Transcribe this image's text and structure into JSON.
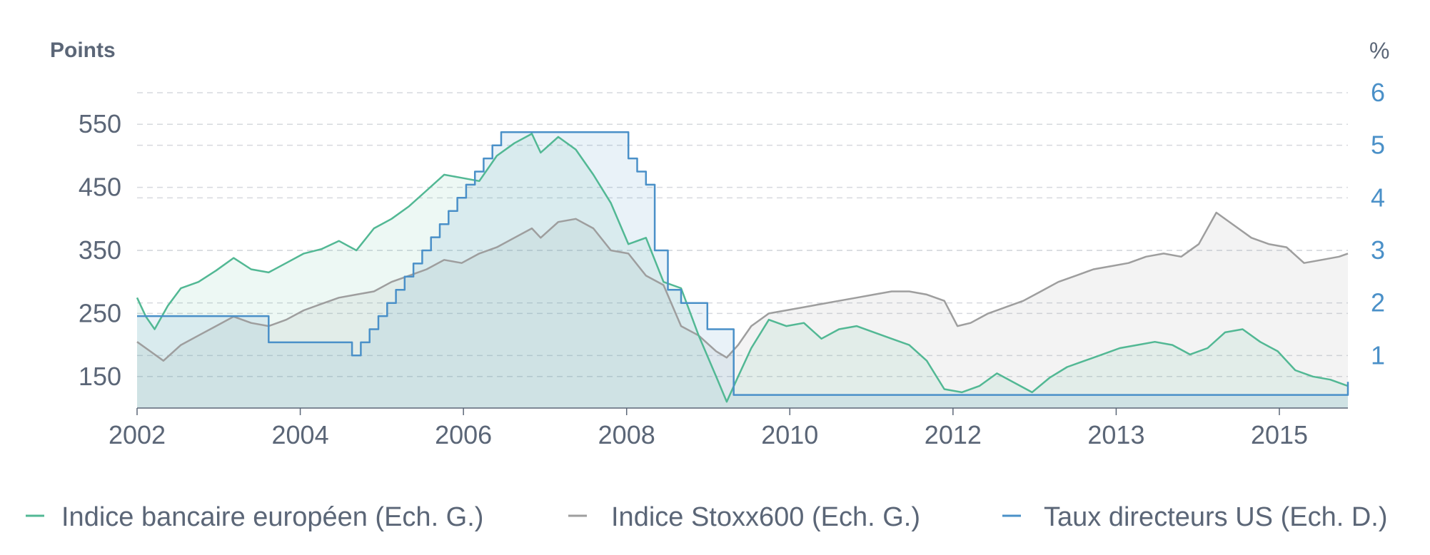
{
  "chart_data": {
    "type": "line",
    "left_axis_label": "Points",
    "right_axis_label": "%",
    "y_left_range": [
      100,
      600
    ],
    "y_right_range": [
      0,
      6
    ],
    "y_left_ticks": [
      "150",
      "250",
      "350",
      "450",
      "550"
    ],
    "y_right_ticks": [
      "1",
      "2",
      "3",
      "4",
      "5",
      "6"
    ],
    "x_tick_labels": [
      "2002",
      "2004",
      "2006",
      "2008",
      "2010",
      "2012",
      "2013",
      "2015"
    ],
    "x_range": [
      2002.0,
      2015.8
    ],
    "grid": "horizontal-dashed",
    "legend_position": "bottom",
    "colors": {
      "bank_index": "#52b894",
      "stoxx600": "#9e9e9e",
      "us_rates": "#4a90c8",
      "text": "#5b6677"
    },
    "series": [
      {
        "name": "Indice bancaire européen (Ech. G.)",
        "axis": "left",
        "x": [
          2002.0,
          2002.1,
          2002.2,
          2002.35,
          2002.5,
          2002.7,
          2002.9,
          2003.1,
          2003.3,
          2003.5,
          2003.7,
          2003.9,
          2004.1,
          2004.3,
          2004.5,
          2004.7,
          2004.9,
          2005.1,
          2005.3,
          2005.5,
          2005.7,
          2005.9,
          2006.1,
          2006.3,
          2006.5,
          2006.6,
          2006.8,
          2007.0,
          2007.2,
          2007.4,
          2007.6,
          2007.8,
          2008.0,
          2008.2,
          2008.4,
          2008.6,
          2008.72,
          2008.85,
          2009.0,
          2009.2,
          2009.4,
          2009.6,
          2009.8,
          2010.0,
          2010.2,
          2010.4,
          2010.6,
          2010.8,
          2011.0,
          2011.2,
          2011.4,
          2011.6,
          2011.8,
          2012.0,
          2012.2,
          2012.4,
          2012.6,
          2012.8,
          2013.0,
          2013.2,
          2013.4,
          2013.6,
          2013.8,
          2014.0,
          2014.2,
          2014.4,
          2014.6,
          2014.8,
          2015.0,
          2015.2,
          2015.4,
          2015.6,
          2015.8
        ],
        "values": [
          275,
          245,
          225,
          262,
          290,
          300,
          318,
          338,
          320,
          315,
          330,
          345,
          352,
          365,
          350,
          385,
          400,
          420,
          445,
          470,
          465,
          460,
          500,
          520,
          535,
          505,
          530,
          510,
          470,
          425,
          360,
          370,
          300,
          290,
          215,
          150,
          110,
          150,
          195,
          240,
          230,
          235,
          210,
          225,
          230,
          220,
          210,
          200,
          175,
          130,
          125,
          135,
          155,
          140,
          125,
          148,
          165,
          175,
          185,
          195,
          200,
          205,
          200,
          185,
          195,
          220,
          225,
          205,
          190,
          160,
          150,
          145,
          135
        ]
      },
      {
        "name": "Indice Stoxx600 (Ech. G.)",
        "axis": "left",
        "x": [
          2002.0,
          2002.15,
          2002.3,
          2002.5,
          2002.7,
          2002.9,
          2003.1,
          2003.3,
          2003.5,
          2003.7,
          2003.9,
          2004.1,
          2004.3,
          2004.5,
          2004.7,
          2004.9,
          2005.1,
          2005.3,
          2005.5,
          2005.7,
          2005.9,
          2006.1,
          2006.3,
          2006.5,
          2006.6,
          2006.8,
          2007.0,
          2007.2,
          2007.4,
          2007.6,
          2007.8,
          2008.0,
          2008.2,
          2008.4,
          2008.6,
          2008.72,
          2008.85,
          2009.0,
          2009.2,
          2009.4,
          2009.6,
          2009.8,
          2010.0,
          2010.2,
          2010.4,
          2010.6,
          2010.8,
          2011.0,
          2011.2,
          2011.35,
          2011.5,
          2011.7,
          2011.9,
          2012.1,
          2012.3,
          2012.5,
          2012.7,
          2012.9,
          2013.1,
          2013.3,
          2013.5,
          2013.7,
          2013.9,
          2014.1,
          2014.3,
          2014.5,
          2014.7,
          2014.9,
          2015.1,
          2015.3,
          2015.5,
          2015.7,
          2015.8
        ],
        "values": [
          205,
          190,
          175,
          200,
          215,
          230,
          245,
          235,
          230,
          240,
          255,
          265,
          275,
          280,
          285,
          300,
          310,
          320,
          335,
          330,
          345,
          355,
          370,
          385,
          370,
          395,
          400,
          385,
          350,
          345,
          310,
          295,
          230,
          215,
          190,
          180,
          200,
          230,
          250,
          255,
          260,
          265,
          270,
          275,
          280,
          285,
          285,
          280,
          270,
          230,
          235,
          250,
          260,
          270,
          285,
          300,
          310,
          320,
          325,
          330,
          340,
          345,
          340,
          360,
          410,
          390,
          370,
          360,
          355,
          330,
          335,
          340,
          345
        ]
      },
      {
        "name": "Taux directeurs US (Ech. D.)",
        "axis": "right",
        "type": "step",
        "x": [
          2002.0,
          2002.9,
          2003.5,
          2004.45,
          2004.55,
          2004.65,
          2004.75,
          2004.85,
          2004.95,
          2005.05,
          2005.15,
          2005.25,
          2005.35,
          2005.45,
          2005.55,
          2005.65,
          2005.75,
          2005.85,
          2005.95,
          2006.05,
          2006.15,
          2006.25,
          2006.35,
          2006.45,
          2006.55,
          2007.6,
          2007.7,
          2007.8,
          2007.9,
          2008.0,
          2008.05,
          2008.2,
          2008.4,
          2008.5,
          2008.8,
          2008.95,
          2015.95,
          2016.05
        ],
        "values": [
          1.75,
          1.75,
          1.25,
          1.0,
          1.25,
          1.5,
          1.75,
          2.0,
          2.25,
          2.5,
          2.75,
          3.0,
          3.25,
          3.5,
          3.75,
          4.0,
          4.25,
          4.5,
          4.75,
          5.0,
          5.25,
          5.25,
          5.25,
          5.25,
          5.25,
          4.75,
          4.5,
          4.25,
          3.0,
          3.0,
          2.25,
          2.0,
          2.0,
          1.5,
          0.25,
          0.25,
          0.5,
          0.5
        ]
      }
    ]
  }
}
